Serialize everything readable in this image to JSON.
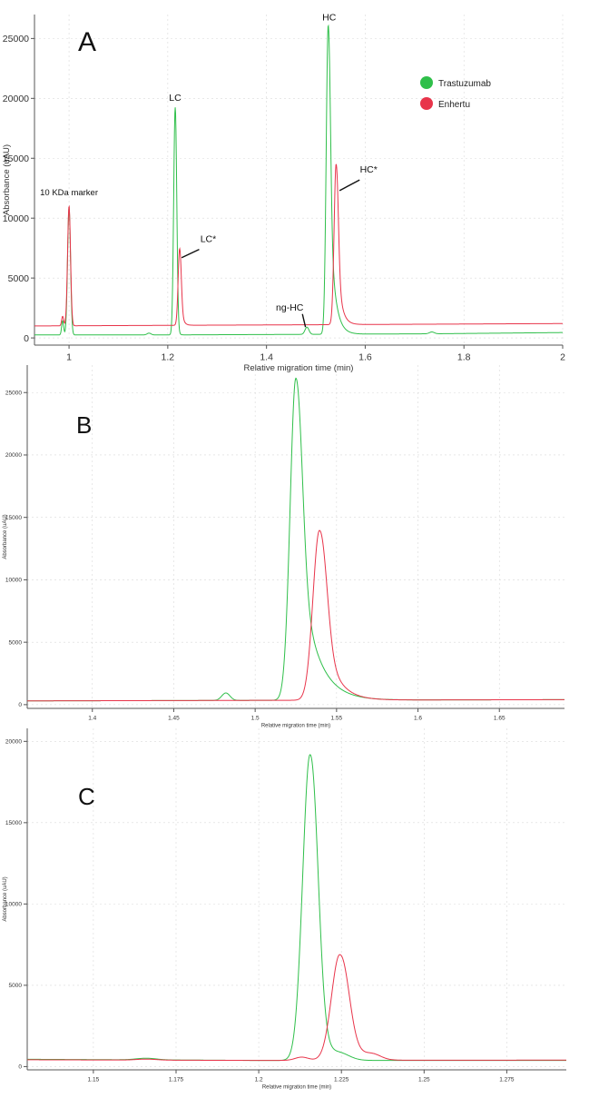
{
  "colors": {
    "trastuzumab": "#2fbf4a",
    "enhertu": "#e8344a",
    "grid": "#d9d9d9",
    "axis": "#555555"
  },
  "legend": {
    "items": [
      {
        "label": "Trastuzumab",
        "color": "#2fbf4a"
      },
      {
        "label": "Enhertu",
        "color": "#e8344a"
      }
    ]
  },
  "chart_data": [
    {
      "type": "line",
      "panel_label": "A",
      "xlabel": "Relative migration time (min)",
      "ylabel": "Absorbance (uAU)",
      "xlim": [
        0.93,
        2.0
      ],
      "ylim": [
        -600,
        27000
      ],
      "xticks": [
        1,
        1.2,
        1.4,
        1.6,
        1.8,
        2
      ],
      "xtick_labels": [
        "1",
        "1.2",
        "1.4",
        "1.6",
        "1.8",
        "2"
      ],
      "yticks": [
        0,
        5000,
        10000,
        15000,
        20000,
        25000
      ],
      "ytick_labels": [
        "0",
        "5000",
        "10000",
        "15000",
        "20000",
        "25000"
      ],
      "legend_position": "top-right",
      "series": [
        {
          "name": "Trastuzumab",
          "color": "#2fbf4a",
          "baseline": [
            [
              0.93,
              250
            ],
            [
              1.2,
              250
            ],
            [
              1.5,
              300
            ],
            [
              1.75,
              350
            ],
            [
              2.0,
              450
            ]
          ],
          "peaks": [
            {
              "x": 0.987,
              "h": 1200,
              "w": 0.002,
              "tail": 0
            },
            {
              "x": 1.0,
              "h": 10600,
              "w": 0.003,
              "tail": 0
            },
            {
              "x": 1.162,
              "h": 150,
              "w": 0.004,
              "tail": 0
            },
            {
              "x": 1.215,
              "h": 19000,
              "w": 0.003,
              "tail": 0.002
            },
            {
              "x": 1.482,
              "h": 600,
              "w": 0.004,
              "tail": 0
            },
            {
              "x": 1.525,
              "h": 25800,
              "w": 0.004,
              "tail": 0.01
            },
            {
              "x": 1.735,
              "h": 150,
              "w": 0.005,
              "tail": 0
            }
          ]
        },
        {
          "name": "Enhertu",
          "color": "#e8344a",
          "baseline": [
            [
              0.93,
              1000
            ],
            [
              1.2,
              1050
            ],
            [
              1.5,
              1100
            ],
            [
              1.75,
              1150
            ],
            [
              2.0,
              1200
            ]
          ],
          "peaks": [
            {
              "x": 0.987,
              "h": 800,
              "w": 0.002,
              "tail": 0
            },
            {
              "x": 1.0,
              "h": 10000,
              "w": 0.003,
              "tail": 0
            },
            {
              "x": 1.224,
              "h": 6400,
              "w": 0.003,
              "tail": 0.004
            },
            {
              "x": 1.541,
              "h": 13400,
              "w": 0.004,
              "tail": 0.008
            }
          ]
        }
      ],
      "annotations": [
        {
          "text": "10 KDa marker",
          "x": 1.0,
          "y": 11900,
          "leader": false
        },
        {
          "text": "LC",
          "x": 1.215,
          "y": 19800,
          "leader": false
        },
        {
          "text": "LC*",
          "x": 1.282,
          "y": 8000,
          "leader": true,
          "leader_to": [
            1.228,
            6700
          ]
        },
        {
          "text": "HC",
          "x": 1.527,
          "y": 26500,
          "leader": false
        },
        {
          "text": "HC*",
          "x": 1.607,
          "y": 13800,
          "leader": true,
          "leader_to": [
            1.548,
            12300
          ]
        },
        {
          "text": "ng-HC",
          "x": 1.447,
          "y": 2300,
          "leader": true,
          "leader_to": [
            1.479,
            900
          ]
        }
      ]
    },
    {
      "type": "line",
      "panel_label": "B",
      "xlabel": "Relative migration time (min)",
      "ylabel": "Absorbance (uAU)",
      "xlim": [
        1.36,
        1.69
      ],
      "ylim": [
        -300,
        27200
      ],
      "xticks": [
        1.4,
        1.45,
        1.5,
        1.55,
        1.6,
        1.65
      ],
      "xtick_labels": [
        "1.4",
        "1.45",
        "1.5",
        "1.55",
        "1.6",
        "1.65"
      ],
      "yticks": [
        0,
        5000,
        10000,
        15000,
        20000,
        25000
      ],
      "ytick_labels": [
        "0",
        "5000",
        "10000",
        "15000",
        "20000",
        "25000"
      ],
      "series": [
        {
          "name": "Trastuzumab",
          "color": "#2fbf4a",
          "baseline": [
            [
              1.36,
              300
            ],
            [
              1.69,
              400
            ]
          ],
          "peaks": [
            {
              "x": 1.482,
              "h": 600,
              "w": 0.0025,
              "tail": 0
            },
            {
              "x": 1.525,
              "h": 25800,
              "w": 0.0035,
              "tail": 0.01
            }
          ]
        },
        {
          "name": "Enhertu",
          "color": "#e8344a",
          "baseline": [
            [
              1.36,
              300
            ],
            [
              1.69,
              400
            ]
          ],
          "peaks": [
            {
              "x": 1.5395,
              "h": 13600,
              "w": 0.004,
              "tail": 0.008
            }
          ]
        }
      ],
      "annotations": []
    },
    {
      "type": "line",
      "panel_label": "C",
      "xlabel": "Relative migration time (min)",
      "ylabel": "Absorbance (uAU)",
      "xlim": [
        1.13,
        1.293
      ],
      "ylim": [
        -200,
        20800
      ],
      "xticks": [
        1.15,
        1.175,
        1.2,
        1.225,
        1.25,
        1.275
      ],
      "xtick_labels": [
        "1.15",
        "1.175",
        "1.2",
        "1.225",
        "1.25",
        "1.275"
      ],
      "yticks": [
        0,
        5000,
        10000,
        15000,
        20000
      ],
      "ytick_labels": [
        "0",
        "5000",
        "10000",
        "15000",
        "20000"
      ],
      "series": [
        {
          "name": "Trastuzumab",
          "color": "#2fbf4a",
          "baseline": [
            [
              1.13,
              450
            ],
            [
              1.2,
              380
            ],
            [
              1.293,
              380
            ]
          ],
          "peaks": [
            {
              "x": 1.166,
              "h": 100,
              "w": 0.003,
              "tail": 0
            },
            {
              "x": 1.2155,
              "h": 18800,
              "w": 0.0022,
              "tail": 0.002
            },
            {
              "x": 1.2245,
              "h": 400,
              "w": 0.003,
              "tail": 0
            }
          ]
        },
        {
          "name": "Enhertu",
          "color": "#e8344a",
          "baseline": [
            [
              1.13,
              420
            ],
            [
              1.2,
              380
            ],
            [
              1.293,
              400
            ]
          ],
          "peaks": [
            {
              "x": 1.166,
              "h": 60,
              "w": 0.003,
              "tail": 0
            },
            {
              "x": 1.213,
              "h": 200,
              "w": 0.002,
              "tail": 0
            },
            {
              "x": 1.2245,
              "h": 6500,
              "w": 0.0025,
              "tail": 0.003
            },
            {
              "x": 1.2345,
              "h": 300,
              "w": 0.0025,
              "tail": 0
            }
          ]
        }
      ],
      "annotations": []
    }
  ]
}
